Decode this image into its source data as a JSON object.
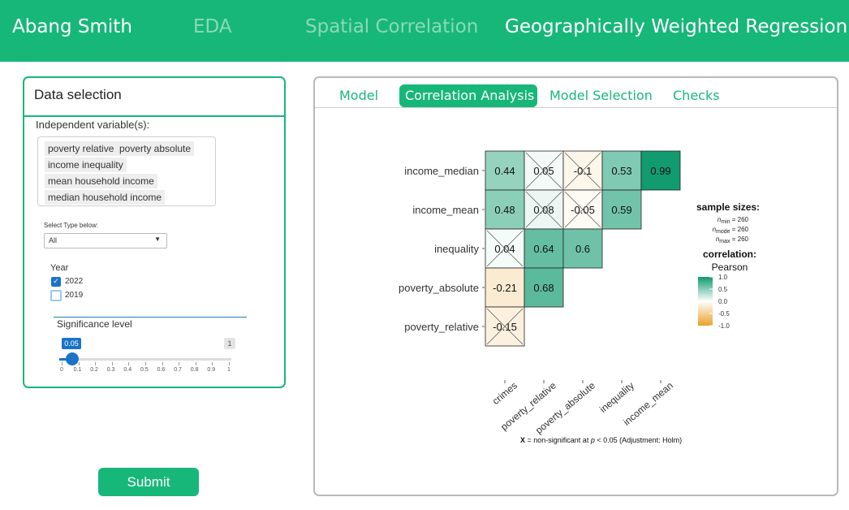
{
  "navbar": {
    "brand": "Abang Smith",
    "items": [
      {
        "label": "EDA",
        "state": "inactive"
      },
      {
        "label": "Spatial Correlation",
        "state": "inactive"
      },
      {
        "label": "Geographically Weighted Regression",
        "state": "active"
      }
    ]
  },
  "sidebar": {
    "title": "Data selection",
    "independent_label": "Independent variable(s):",
    "selected_chips": [
      "poverty relative",
      "poverty absolute",
      "income inequality",
      "mean household income",
      "median household income"
    ],
    "select_type_label": "Select Type below:",
    "select_type_value": "All",
    "year_label": "Year",
    "years": [
      {
        "label": "2022",
        "checked": true
      },
      {
        "label": "2019",
        "checked": false
      }
    ],
    "significance_label": "Significance level",
    "slider_value": "0.05",
    "slider_max_label": "1",
    "slider_ticks": [
      "0",
      "0.1",
      "0.2",
      "0.3",
      "0.4",
      "0.5",
      "0.6",
      "0.7",
      "0.8",
      "0.9",
      "1"
    ]
  },
  "submit_label": "Submit",
  "tabs": [
    {
      "label": "Model",
      "active": false
    },
    {
      "label": "Correlation Analysis",
      "active": true
    },
    {
      "label": "Model Selection",
      "active": false
    },
    {
      "label": "Checks",
      "active": false
    }
  ],
  "colors": {
    "brand": "#17b77a",
    "corr_high": "#0f9a6e",
    "corr_low": "#e9a12a",
    "slider": "#1a73c7"
  },
  "chart_data": {
    "type": "heatmap",
    "rows": [
      "income_median",
      "income_mean",
      "inequality",
      "poverty_absolute",
      "poverty_relative"
    ],
    "columns": [
      "crimes",
      "poverty_relative",
      "poverty_absolute",
      "inequality",
      "income_mean"
    ],
    "cells": [
      {
        "row": "income_median",
        "col": "crimes",
        "value": 0.44,
        "label": "0.44",
        "nonsig": false
      },
      {
        "row": "income_median",
        "col": "poverty_relative",
        "value": 0.05,
        "label": "0.05",
        "nonsig": true
      },
      {
        "row": "income_median",
        "col": "poverty_absolute",
        "value": -0.1,
        "label": "-0.1",
        "nonsig": true
      },
      {
        "row": "income_median",
        "col": "inequality",
        "value": 0.53,
        "label": "0.53",
        "nonsig": false
      },
      {
        "row": "income_median",
        "col": "income_mean",
        "value": 0.99,
        "label": "0.99",
        "nonsig": false
      },
      {
        "row": "income_mean",
        "col": "crimes",
        "value": 0.48,
        "label": "0.48",
        "nonsig": false
      },
      {
        "row": "income_mean",
        "col": "poverty_relative",
        "value": 0.08,
        "label": "0.08",
        "nonsig": true
      },
      {
        "row": "income_mean",
        "col": "poverty_absolute",
        "value": -0.05,
        "label": "-0.05",
        "nonsig": true
      },
      {
        "row": "income_mean",
        "col": "inequality",
        "value": 0.59,
        "label": "0.59",
        "nonsig": false
      },
      {
        "row": "inequality",
        "col": "crimes",
        "value": 0.04,
        "label": "0.04",
        "nonsig": true
      },
      {
        "row": "inequality",
        "col": "poverty_relative",
        "value": 0.64,
        "label": "0.64",
        "nonsig": false
      },
      {
        "row": "inequality",
        "col": "poverty_absolute",
        "value": 0.6,
        "label": "0.6",
        "nonsig": false
      },
      {
        "row": "poverty_absolute",
        "col": "crimes",
        "value": -0.21,
        "label": "-0.21",
        "nonsig": false
      },
      {
        "row": "poverty_absolute",
        "col": "poverty_relative",
        "value": 0.68,
        "label": "0.68",
        "nonsig": false
      },
      {
        "row": "poverty_relative",
        "col": "crimes",
        "value": -0.15,
        "label": "-0.15",
        "nonsig": true
      }
    ],
    "legend": {
      "sample_title": "sample sizes:",
      "n_min": "260",
      "n_mode": "260",
      "n_max": "260",
      "corr_title": "correlation:",
      "corr_method": "Pearson",
      "scale_ticks": [
        "1.0",
        "0.5",
        "0.0",
        "-0.5",
        "-1.0"
      ],
      "range": [
        -1,
        1
      ]
    },
    "caption_x": "X",
    "caption_rest": " = non-significant at ",
    "caption_p": "p",
    "caption_tail": " < 0.05 (Adjustment: Holm)"
  }
}
